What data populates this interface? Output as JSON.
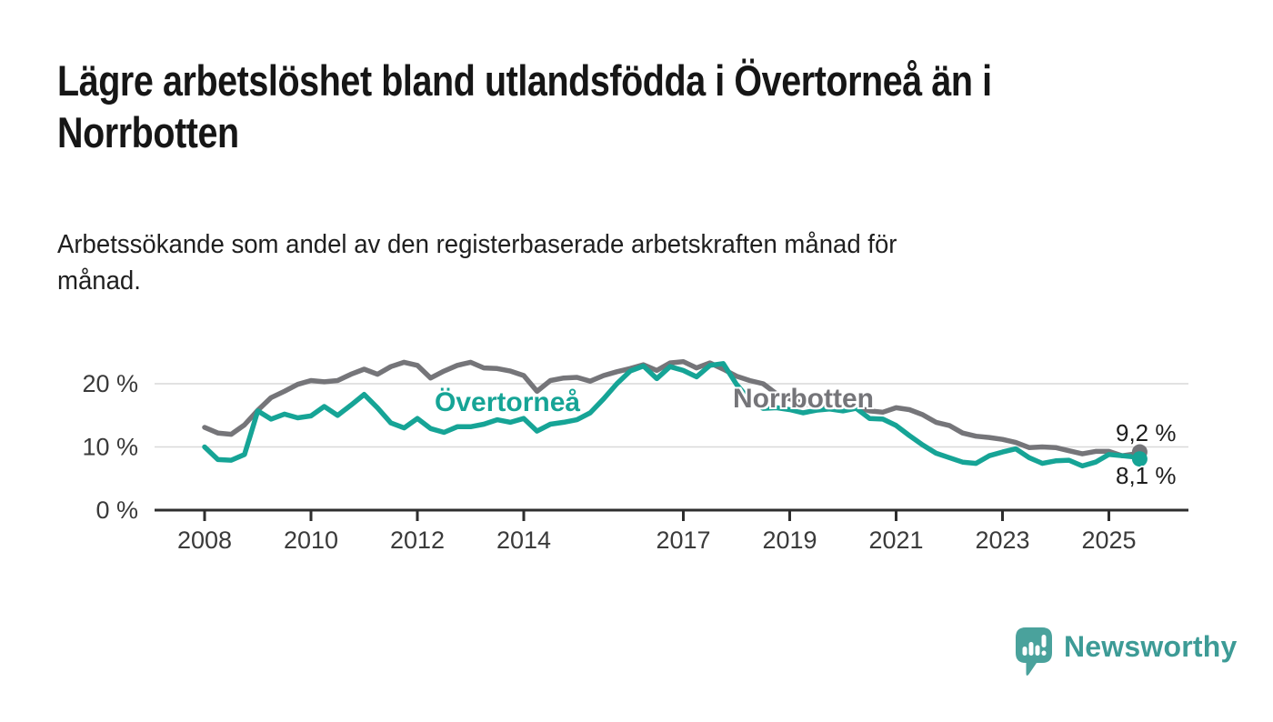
{
  "header": {
    "title": "Lägre arbetslöshet bland utlandsfödda i Övertorneå än i\nNorrbotten",
    "subtitle": "Arbetssökande som andel av den registerbaserade arbetskraften månad för\nmånad."
  },
  "chart_data": {
    "type": "line",
    "title": "Lägre arbetslöshet bland utlandsfödda i Övertorneå än i Norrbotten",
    "ylabel": "Arbetssökande som andel av den registerbaserade arbetskraften",
    "x_unit": "år (månadsvärden)",
    "y_unit": "%",
    "ylim": [
      0,
      25
    ],
    "xlim": [
      2007.05,
      2026.5
    ],
    "grid": "horizontal",
    "legend_position": "inline-labels",
    "x": [
      2008,
      2008.25,
      2008.5,
      2008.75,
      2009,
      2009.25,
      2009.5,
      2009.75,
      2010,
      2010.25,
      2010.5,
      2010.75,
      2011,
      2011.25,
      2011.5,
      2011.75,
      2012,
      2012.25,
      2012.5,
      2012.75,
      2013,
      2013.25,
      2013.5,
      2013.75,
      2014,
      2014.25,
      2014.5,
      2014.75,
      2015,
      2015.25,
      2015.5,
      2015.75,
      2016,
      2016.25,
      2016.5,
      2016.75,
      2017,
      2017.25,
      2017.5,
      2017.75,
      2018,
      2018.25,
      2018.5,
      2018.75,
      2019,
      2019.25,
      2019.5,
      2019.75,
      2020,
      2020.25,
      2020.5,
      2020.75,
      2021,
      2021.25,
      2021.5,
      2021.75,
      2022,
      2022.25,
      2022.5,
      2022.75,
      2023,
      2023.25,
      2023.5,
      2023.75,
      2024,
      2024.25,
      2024.5,
      2024.75,
      2025,
      2025.25,
      2025.5,
      2025.58
    ],
    "series": [
      {
        "name": "Norrbotten",
        "color": "#757579",
        "end_label": "9,2 %",
        "end_value": 9.2,
        "values": [
          13.1,
          12.2,
          12.0,
          13.5,
          15.8,
          17.8,
          18.8,
          19.9,
          20.5,
          20.3,
          20.5,
          21.5,
          22.3,
          21.5,
          22.7,
          23.4,
          22.9,
          20.9,
          22.0,
          22.9,
          23.4,
          22.5,
          22.4,
          22.0,
          21.3,
          18.8,
          20.5,
          20.9,
          21.0,
          20.4,
          21.3,
          21.9,
          22.4,
          23.0,
          22.1,
          23.3,
          23.5,
          22.5,
          23.3,
          22.3,
          21.2,
          20.5,
          20.0,
          18.4,
          17.6,
          16.9,
          16.4,
          16.2,
          16.0,
          16.3,
          15.7,
          15.5,
          16.2,
          15.9,
          15.1,
          13.9,
          13.4,
          12.2,
          11.7,
          11.5,
          11.2,
          10.7,
          9.9,
          10.0,
          9.9,
          9.4,
          8.9,
          9.3,
          9.3,
          8.6,
          8.9,
          9.2
        ]
      },
      {
        "name": "Övertorneå",
        "color": "#16a496",
        "end_label": "8,1 %",
        "end_value": 8.1,
        "values": [
          10.0,
          8.0,
          7.9,
          8.8,
          15.7,
          14.4,
          15.2,
          14.6,
          14.9,
          16.4,
          15.0,
          16.6,
          18.3,
          16.2,
          13.8,
          13.0,
          14.5,
          12.9,
          12.3,
          13.2,
          13.2,
          13.6,
          14.3,
          13.9,
          14.5,
          12.5,
          13.6,
          13.9,
          14.3,
          15.4,
          17.6,
          20.0,
          22.0,
          22.8,
          20.8,
          22.7,
          22.1,
          21.1,
          22.9,
          23.2,
          19.9,
          17.4,
          16.1,
          16.2,
          15.9,
          15.4,
          15.8,
          16.0,
          15.7,
          16.1,
          14.5,
          14.4,
          13.4,
          11.8,
          10.3,
          9.0,
          8.3,
          7.6,
          7.4,
          8.6,
          9.2,
          9.7,
          8.3,
          7.4,
          7.8,
          7.9,
          7.0,
          7.6,
          8.8,
          8.6,
          8.4,
          8.1
        ]
      }
    ],
    "x_axis": {
      "ticks": [
        {
          "label": "2008",
          "year": 2008
        },
        {
          "label": "2010",
          "year": 2010
        },
        {
          "label": "2012",
          "year": 2012
        },
        {
          "label": "2014",
          "year": 2014
        },
        {
          "label": "2017",
          "year": 2017
        },
        {
          "label": "2019",
          "year": 2019
        },
        {
          "label": "2021",
          "year": 2021
        },
        {
          "label": "2023",
          "year": 2023
        },
        {
          "label": "2025",
          "year": 2025
        }
      ]
    },
    "y_axis": {
      "ticks": [
        {
          "label": "0 %",
          "value": 0
        },
        {
          "label": "10 %",
          "value": 10
        },
        {
          "label": "20 %",
          "value": 20
        }
      ]
    }
  },
  "annotations": {
    "overtornea_inline_label": "Övertorneå",
    "norrbotten_inline_label": "Norrbotten",
    "norrbotten_end_label": "9,2 %",
    "overtornea_end_label": "8,1 %"
  },
  "footer": {
    "brand": "Newsworthy",
    "logo_icon": "newsworthy-speech-bubble-bar-chart-icon",
    "brand_color": "#3d9b96",
    "logo_color": "#4aa29c"
  },
  "colors": {
    "background": "#ffffff",
    "axis": "#2e2e2e",
    "gridline": "#d9d9d9",
    "tick_label": "#3a3a3a",
    "title_text": "#161616"
  }
}
